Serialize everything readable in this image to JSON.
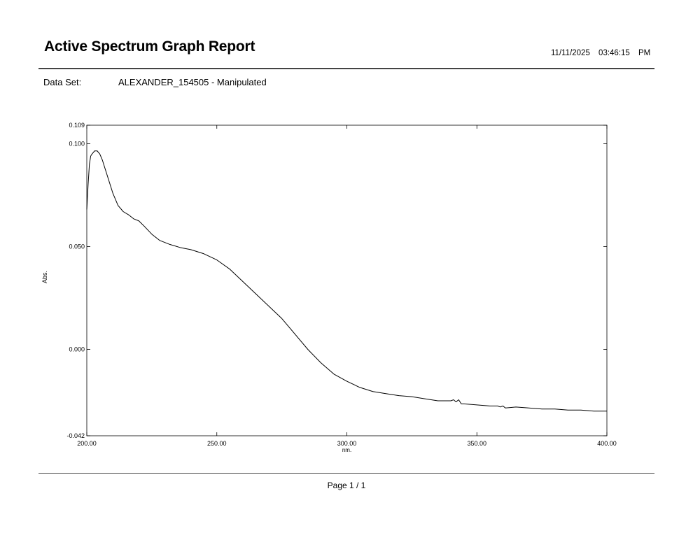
{
  "report": {
    "title": "Active Spectrum Graph Report",
    "datetime": "11/11/2025   03:46:15 PM",
    "dataset_label": "Data Set:",
    "dataset_value": "ALEXANDER_154505 - Manipulated",
    "page": "Page 1 / 1"
  },
  "chart_data": {
    "type": "line",
    "xlabel": "nm.",
    "ylabel": "Abs.",
    "xlim": [
      200,
      400
    ],
    "ylim": [
      -0.042,
      0.109
    ],
    "x_ticks": [
      "200.00",
      "250.00",
      "300.00",
      "350.00",
      "400.00"
    ],
    "x_tick_values": [
      200,
      250,
      300,
      350,
      400
    ],
    "y_ticks": [
      "-0.042",
      "0.000",
      "0.050",
      "0.100",
      "0.109"
    ],
    "y_tick_values": [
      -0.042,
      0.0,
      0.05,
      0.1,
      0.109
    ],
    "grid": false,
    "line_color": "#000000",
    "series": [
      {
        "x": [
          200,
          200.5,
          201,
          201.5,
          202,
          203,
          204,
          205,
          206,
          207,
          208,
          210,
          212,
          214,
          216,
          218,
          220,
          222,
          225,
          228,
          232,
          236,
          240,
          245,
          250,
          255,
          260,
          265,
          270,
          275,
          280,
          285,
          290,
          295,
          300,
          305,
          310,
          315,
          320,
          325,
          330,
          335,
          340,
          341,
          342,
          343,
          344,
          345,
          350,
          355,
          358,
          359,
          360,
          361,
          365,
          370,
          375,
          380,
          385,
          390,
          395,
          400
        ],
        "y": [
          0.068,
          0.08,
          0.09,
          0.094,
          0.095,
          0.0965,
          0.0965,
          0.095,
          0.092,
          0.088,
          0.084,
          0.076,
          0.07,
          0.067,
          0.0655,
          0.0635,
          0.0625,
          0.06,
          0.056,
          0.053,
          0.051,
          0.0495,
          0.0485,
          0.0465,
          0.0435,
          0.039,
          0.033,
          0.027,
          0.021,
          0.015,
          0.0075,
          0.0,
          -0.0065,
          -0.012,
          -0.0155,
          -0.0185,
          -0.0205,
          -0.0215,
          -0.0225,
          -0.023,
          -0.024,
          -0.025,
          -0.025,
          -0.0245,
          -0.0255,
          -0.0245,
          -0.0265,
          -0.0265,
          -0.027,
          -0.0275,
          -0.0275,
          -0.028,
          -0.0275,
          -0.0285,
          -0.028,
          -0.0285,
          -0.029,
          -0.029,
          -0.0295,
          -0.0295,
          -0.03,
          -0.03
        ]
      }
    ]
  }
}
